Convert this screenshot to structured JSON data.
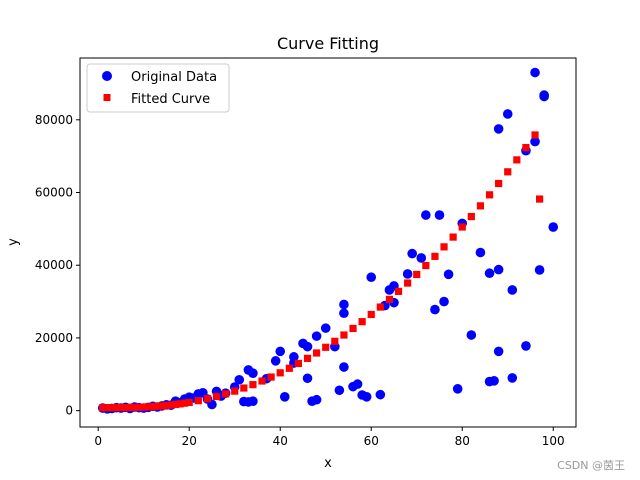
{
  "chart_data": {
    "type": "scatter",
    "title": "Curve Fitting",
    "xlabel": "x",
    "ylabel": "y",
    "xlim": [
      -4,
      105
    ],
    "ylim": [
      -4500,
      97000
    ],
    "xticks": [
      0,
      20,
      40,
      60,
      80,
      100
    ],
    "yticks": [
      0,
      20000,
      40000,
      60000,
      80000
    ],
    "ytick_labels": [
      "0",
      "20000",
      "40000",
      "60000",
      "80000"
    ],
    "legend_position": "upper-left",
    "series": [
      {
        "name": "Original Data",
        "marker": "circle",
        "color": "#0000ff",
        "points": [
          [
            1,
            700
          ],
          [
            2,
            500
          ],
          [
            3,
            600
          ],
          [
            4,
            800
          ],
          [
            5,
            700
          ],
          [
            6,
            900
          ],
          [
            7,
            600
          ],
          [
            8,
            1000
          ],
          [
            9,
            800
          ],
          [
            10,
            700
          ],
          [
            11,
            900
          ],
          [
            12,
            1200
          ],
          [
            13,
            1000
          ],
          [
            14,
            1300
          ],
          [
            15,
            1600
          ],
          [
            16,
            1500
          ],
          [
            17,
            2600
          ],
          [
            18,
            2200
          ],
          [
            19,
            3200
          ],
          [
            20,
            3700
          ],
          [
            21,
            3500
          ],
          [
            22,
            4600
          ],
          [
            23,
            4900
          ],
          [
            24,
            3200
          ],
          [
            25,
            1700
          ],
          [
            26,
            5300
          ],
          [
            27,
            4000
          ],
          [
            28,
            4800
          ],
          [
            30,
            6500
          ],
          [
            31,
            8500
          ],
          [
            32,
            2500
          ],
          [
            33,
            11200
          ],
          [
            33,
            2400
          ],
          [
            34,
            10300
          ],
          [
            34,
            2600
          ],
          [
            37,
            8800
          ],
          [
            39,
            13700
          ],
          [
            40,
            16300
          ],
          [
            41,
            3800
          ],
          [
            43,
            14800
          ],
          [
            43,
            13100
          ],
          [
            45,
            18500
          ],
          [
            46,
            17600
          ],
          [
            46,
            8900
          ],
          [
            47,
            2600
          ],
          [
            48,
            20500
          ],
          [
            48,
            3000
          ],
          [
            50,
            22700
          ],
          [
            52,
            17600
          ],
          [
            53,
            5600
          ],
          [
            54,
            29200
          ],
          [
            54,
            26800
          ],
          [
            54,
            12000
          ],
          [
            56,
            6600
          ],
          [
            57,
            7300
          ],
          [
            58,
            4300
          ],
          [
            59,
            3800
          ],
          [
            60,
            36700
          ],
          [
            62,
            4400
          ],
          [
            63,
            28900
          ],
          [
            64,
            33200
          ],
          [
            65,
            34300
          ],
          [
            65,
            29700
          ],
          [
            68,
            37600
          ],
          [
            69,
            43200
          ],
          [
            71,
            42000
          ],
          [
            72,
            53800
          ],
          [
            74,
            27800
          ],
          [
            75,
            53800
          ],
          [
            76,
            30000
          ],
          [
            77,
            37500
          ],
          [
            79,
            6000
          ],
          [
            80,
            51500
          ],
          [
            82,
            20800
          ],
          [
            84,
            43500
          ],
          [
            86,
            37800
          ],
          [
            86,
            8000
          ],
          [
            87,
            8200
          ],
          [
            88,
            77500
          ],
          [
            88,
            38800
          ],
          [
            88,
            16300
          ],
          [
            90,
            81600
          ],
          [
            91,
            33200
          ],
          [
            91,
            9000
          ],
          [
            94,
            71500
          ],
          [
            94,
            17800
          ],
          [
            96,
            93000
          ],
          [
            96,
            74000
          ],
          [
            97,
            38700
          ],
          [
            98,
            86800
          ],
          [
            98,
            86400
          ],
          [
            100,
            50500
          ]
        ]
      },
      {
        "name": "Fitted Curve",
        "marker": "square",
        "color": "#ff0000",
        "points": [
          [
            1,
            800
          ],
          [
            2,
            800
          ],
          [
            3,
            810
          ],
          [
            4,
            820
          ],
          [
            5,
            830
          ],
          [
            6,
            850
          ],
          [
            7,
            870
          ],
          [
            8,
            900
          ],
          [
            9,
            930
          ],
          [
            10,
            980
          ],
          [
            11,
            1040
          ],
          [
            12,
            1110
          ],
          [
            13,
            1200
          ],
          [
            14,
            1300
          ],
          [
            15,
            1420
          ],
          [
            16,
            1550
          ],
          [
            17,
            1700
          ],
          [
            18,
            1870
          ],
          [
            19,
            2060
          ],
          [
            20,
            2260
          ],
          [
            22,
            2740
          ],
          [
            24,
            3280
          ],
          [
            26,
            3900
          ],
          [
            28,
            4600
          ],
          [
            30,
            5370
          ],
          [
            32,
            6220
          ],
          [
            34,
            7150
          ],
          [
            36,
            8150
          ],
          [
            38,
            9240
          ],
          [
            40,
            10400
          ],
          [
            42,
            11650
          ],
          [
            44,
            12980
          ],
          [
            46,
            14380
          ],
          [
            48,
            15860
          ],
          [
            50,
            17430
          ],
          [
            52,
            19070
          ],
          [
            54,
            20800
          ],
          [
            56,
            22600
          ],
          [
            58,
            24480
          ],
          [
            60,
            26450
          ],
          [
            62,
            28490
          ],
          [
            64,
            30610
          ],
          [
            66,
            32810
          ],
          [
            68,
            35100
          ],
          [
            70,
            37460
          ],
          [
            72,
            39910
          ],
          [
            74,
            42440
          ],
          [
            76,
            45050
          ],
          [
            78,
            47740
          ],
          [
            80,
            50520
          ],
          [
            82,
            53380
          ],
          [
            84,
            56330
          ],
          [
            86,
            59360
          ],
          [
            88,
            62480
          ],
          [
            90,
            65690
          ],
          [
            92,
            68980
          ],
          [
            94,
            72360
          ],
          [
            96,
            75830
          ],
          [
            97,
            58200
          ]
        ]
      }
    ]
  },
  "watermark": "CSDN @茵王"
}
